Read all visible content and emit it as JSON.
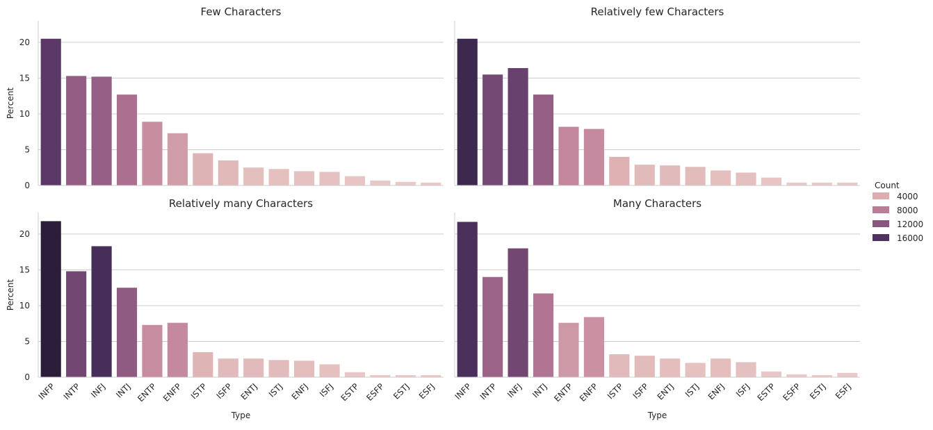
{
  "chart_data": {
    "type": "bar",
    "categories": [
      "INFP",
      "INTP",
      "INFJ",
      "INTJ",
      "ENTP",
      "ENFP",
      "ISTP",
      "ISFP",
      "ENTJ",
      "ISTJ",
      "ENFJ",
      "ISFJ",
      "ESTP",
      "ESFP",
      "ESTJ",
      "ESFJ"
    ],
    "ylabel": "Percent",
    "xlabel": "Type",
    "ylim": [
      0,
      23
    ],
    "yticks": [
      0,
      5,
      10,
      15,
      20
    ],
    "grid": "horizontal",
    "legend": {
      "title": "Count",
      "placement": "right",
      "entries": [
        {
          "label": "4000",
          "color": "#dcaeb0"
        },
        {
          "label": "8000",
          "color": "#bc7c98"
        },
        {
          "label": "12000",
          "color": "#8a5680"
        },
        {
          "label": "16000",
          "color": "#4e3260"
        }
      ]
    },
    "color_scale": {
      "stops": [
        {
          "count": 500,
          "color": "#e8c9c7"
        },
        {
          "count": 4000,
          "color": "#dcaeb0"
        },
        {
          "count": 8000,
          "color": "#bc7c98"
        },
        {
          "count": 12000,
          "color": "#8a5680"
        },
        {
          "count": 16000,
          "color": "#4e3260"
        },
        {
          "count": 20000,
          "color": "#2c1e3a"
        }
      ]
    },
    "panels": [
      {
        "title": "Few Characters",
        "values": [
          20.5,
          15.3,
          15.2,
          12.7,
          8.9,
          7.3,
          4.5,
          3.5,
          2.5,
          2.3,
          2.0,
          1.9,
          1.3,
          0.7,
          0.5,
          0.4
        ],
        "counts": [
          15200,
          11300,
          11200,
          9400,
          6600,
          5400,
          3300,
          2600,
          1850,
          1700,
          1480,
          1400,
          960,
          520,
          370,
          300
        ]
      },
      {
        "title": "Relatively few Characters",
        "values": [
          20.5,
          15.5,
          16.4,
          12.7,
          8.2,
          7.9,
          4.0,
          2.9,
          2.8,
          2.6,
          2.1,
          1.8,
          1.1,
          0.4,
          0.4,
          0.4
        ],
        "counts": [
          17900,
          13500,
          14300,
          11100,
          7100,
          6900,
          3500,
          2500,
          2400,
          2300,
          1800,
          1600,
          960,
          350,
          350,
          350
        ]
      },
      {
        "title": "Relatively many Characters",
        "values": [
          21.8,
          14.8,
          18.3,
          12.5,
          7.3,
          7.6,
          3.5,
          2.6,
          2.6,
          2.4,
          2.3,
          1.8,
          0.7,
          0.3,
          0.3,
          0.3
        ],
        "counts": [
          20000,
          13600,
          16800,
          11500,
          6700,
          7000,
          3200,
          2400,
          2400,
          2200,
          2100,
          1650,
          640,
          280,
          280,
          280
        ]
      },
      {
        "title": "Many Characters",
        "values": [
          21.7,
          14.0,
          18.0,
          11.7,
          7.6,
          8.4,
          3.2,
          3.0,
          2.6,
          2.0,
          2.6,
          2.1,
          0.8,
          0.4,
          0.3,
          0.6
        ],
        "counts": [
          16400,
          10600,
          13600,
          8800,
          5700,
          6300,
          2400,
          2300,
          1950,
          1500,
          1950,
          1600,
          600,
          300,
          230,
          450
        ]
      }
    ]
  }
}
